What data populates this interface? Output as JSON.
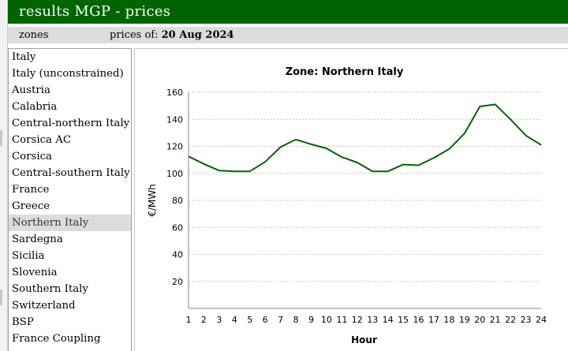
{
  "header": {
    "title": "results MGP - prices"
  },
  "subbar": {
    "zones_label": "zones",
    "prices_of_label": "prices of:",
    "date": "20 Aug 2024"
  },
  "zones": {
    "selected": "Northern Italy",
    "items": [
      "Italy",
      "Italy (unconstrained)",
      "Austria",
      "Calabria",
      "Central-northern Italy",
      "Corsica AC",
      "Corsica",
      "Central-southern Italy",
      "France",
      "Greece",
      "Northern Italy",
      "Sardegna",
      "Sicilia",
      "Slovenia",
      "Southern Italy",
      "Switzerland",
      "BSP",
      "France Coupling"
    ]
  },
  "colors": {
    "header_bg": "#006400",
    "line": "#006400",
    "selected_bg": "#dcdcdc"
  },
  "chart_data": {
    "type": "line",
    "title": "Zone: Northern Italy",
    "xlabel": "Hour",
    "ylabel": "€/MWh",
    "ylim": [
      0,
      160
    ],
    "yticks": [
      20,
      40,
      60,
      80,
      100,
      120,
      140,
      160
    ],
    "grid": true,
    "x": [
      1,
      2,
      3,
      4,
      5,
      6,
      7,
      8,
      9,
      10,
      11,
      12,
      13,
      14,
      15,
      16,
      17,
      18,
      19,
      20,
      21,
      22,
      23,
      24
    ],
    "series": [
      {
        "values": [
          112.5,
          107,
          102,
          101.5,
          101.5,
          108.5,
          119.5,
          125,
          121.5,
          118.5,
          112,
          108,
          101.5,
          101.5,
          106.5,
          106,
          111.5,
          118,
          129.5,
          149.5,
          151,
          140,
          128,
          121
        ]
      }
    ]
  }
}
